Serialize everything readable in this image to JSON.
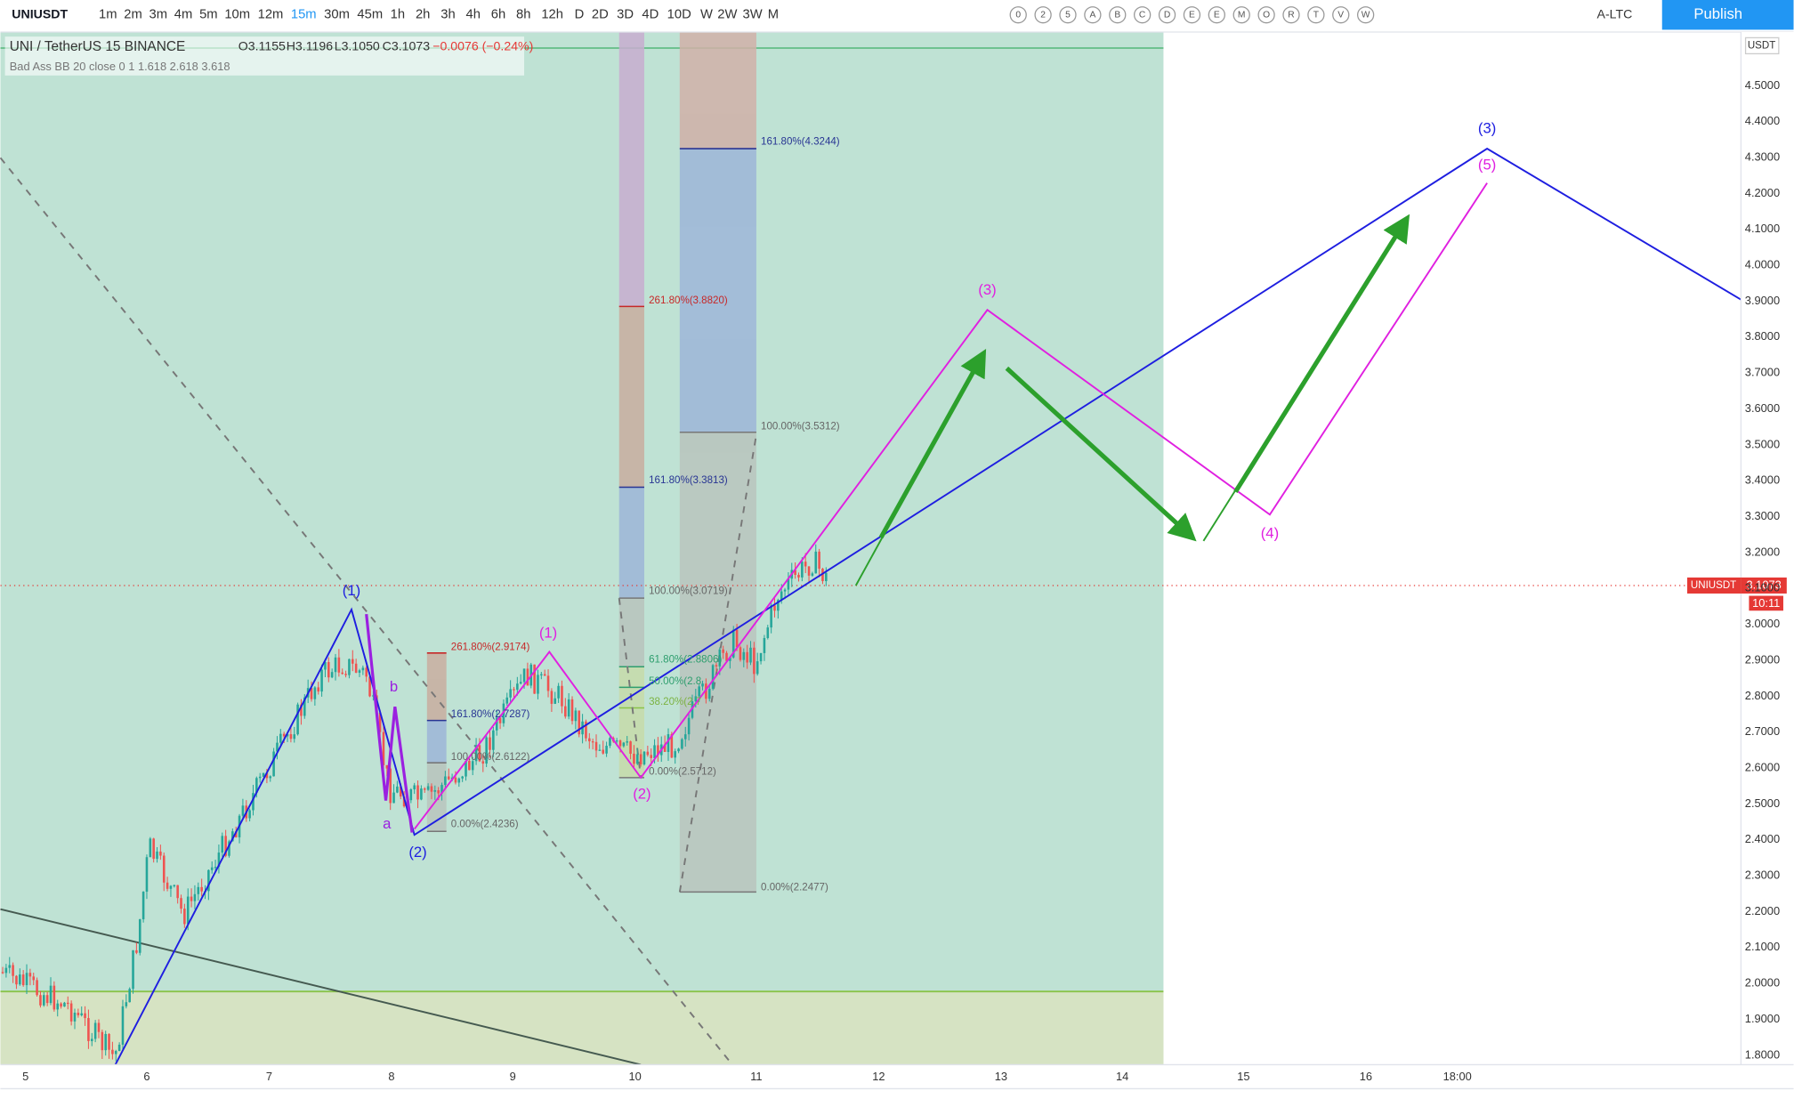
{
  "toolbar": {
    "symbol": "UNIUSDT",
    "intervals": [
      "1m",
      "2m",
      "3m",
      "4m",
      "5m",
      "10m",
      "12m",
      "15m",
      "30m",
      "45m",
      "1h",
      "2h",
      "3h",
      "4h",
      "6h",
      "8h",
      "12h",
      "D",
      "2D",
      "3D",
      "4D",
      "10D",
      "W",
      "2W",
      "3W",
      "M"
    ],
    "active_interval": "15m",
    "letters": [
      "0",
      "2",
      "5",
      "A",
      "B",
      "C",
      "D",
      "E",
      "E",
      "M",
      "O",
      "R",
      "T",
      "V",
      "W"
    ],
    "watchlist": "A-LTC",
    "publish": "Publish"
  },
  "legend": {
    "title": "UNI / TetherUS  15  BINANCE",
    "open": "O3.1155",
    "high": "H3.1196",
    "low": "L3.1050",
    "close": "C3.1073",
    "change": "−0.0076 (−0.24%)",
    "indicator": "Bad Ass BB 20 close 0 1 1.618 2.618 3.618"
  },
  "price_axis": {
    "currency": "USDT",
    "ticks": [
      "4.5000",
      "4.4000",
      "4.3000",
      "4.2000",
      "4.1000",
      "4.0000",
      "3.9000",
      "3.8000",
      "3.7000",
      "3.6000",
      "3.5000",
      "3.4000",
      "3.3000",
      "3.2000",
      "3.1000",
      "3.0000",
      "2.9000",
      "2.8000",
      "2.7000",
      "2.6000",
      "2.5000",
      "2.4000",
      "2.3000",
      "2.2000",
      "2.1000",
      "2.0000",
      "1.9000",
      "1.8000"
    ],
    "tag_symbol": "UNIUSDT",
    "tag_price": "3.1073",
    "tag_timer": "10:11"
  },
  "time_axis": {
    "labels": [
      "5",
      "6",
      "7",
      "8",
      "9",
      "10",
      "11",
      "12",
      "13",
      "14",
      "15",
      "16",
      "18:00"
    ]
  },
  "fib_labels": [
    "161.80%(4.3244)",
    "261.80%(3.8820)",
    "100.00%(3.5312)",
    "161.80%(3.3813)",
    "100.00%(3.0719)",
    "61.80%(2.8806)",
    "50.00%(2.8",
    "38.20%(2.7",
    "261.80%(2.9174)",
    "161.80%(2.7287)",
    "100.00%(2.6122)",
    "0.00%(2.4236)",
    "0.00%(2.5712)",
    "0.00%(2.2477)"
  ],
  "wave_labels": [
    "(1)",
    "(2)",
    "a",
    "b",
    "(1)",
    "(2)",
    "(3)",
    "(4)",
    "(5)",
    "(3)"
  ]
}
